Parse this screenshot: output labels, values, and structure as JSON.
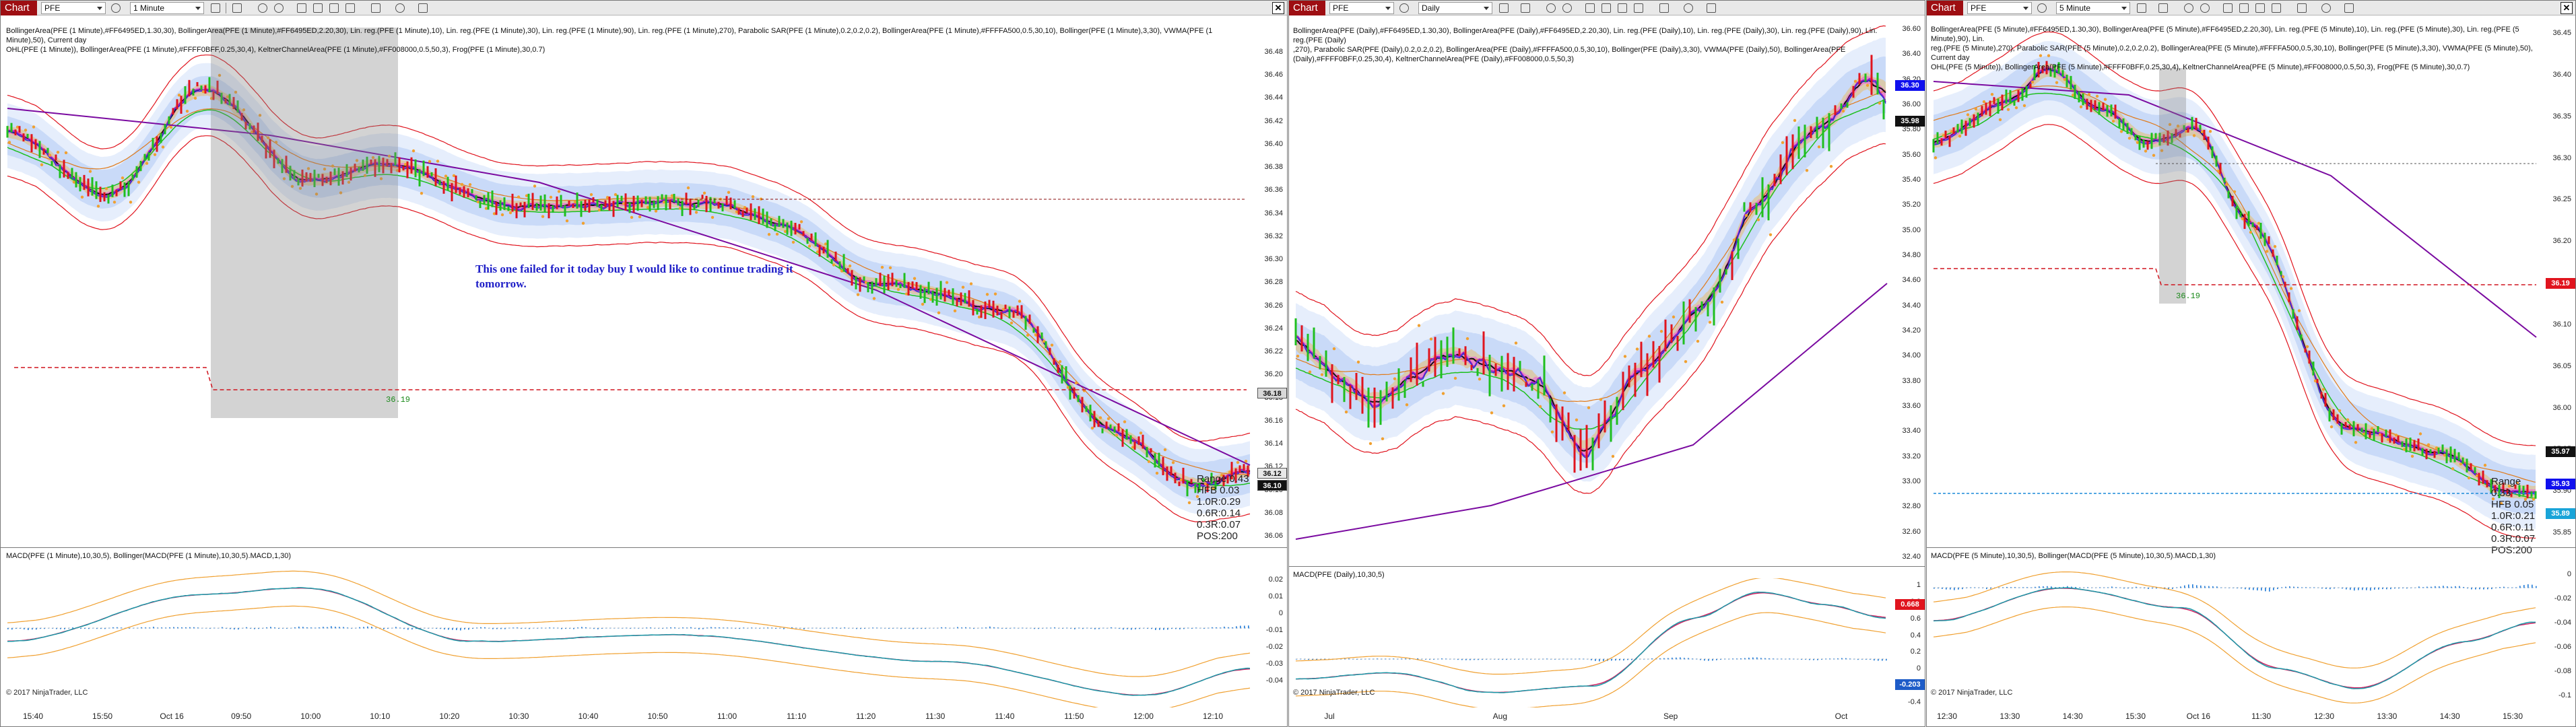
{
  "windows": [
    {
      "chart_label": "Chart",
      "instrument": "PFE",
      "period": "1 Minute",
      "indicators_line1": "BollingerArea(PFE (1 Minute),#FF6495ED,1.30,30), BollingerArea(PFE (1 Minute),#FF6495ED,2.20,30), Lin. reg.(PFE (1 Minute),10), Lin. reg.(PFE (1 Minute),30), Lin. reg.(PFE (1 Minute),90), Lin. reg.(PFE (1 Minute),270), Parabolic SAR(PFE (1 Minute),0.2,0.2,0.2), BollingerArea(PFE (1 Minute),#FFFFA500,0.5,30,10), Bollinger(PFE (1 Minute),3,30), VWMA(PFE (1 Minute),50), Current day",
      "indicators_line2": "OHL(PFE (1 Minute)), BollingerArea(PFE (1 Minute),#FFFF0BFF,0.25,30,4), KeltnerChannelArea(PFE (1 Minute),#FF008000,0.5,50,3), Frog(PFE (1 Minute),30,0.7)",
      "price_axis": [
        "36.48",
        "36.46",
        "36.44",
        "36.42",
        "36.40",
        "36.38",
        "36.36",
        "36.34",
        "36.32",
        "36.30",
        "36.28",
        "36.26",
        "36.24",
        "36.22",
        "36.20",
        "36.18",
        "36.16",
        "36.14",
        "36.12",
        "36.10",
        "36.08",
        "36.06"
      ],
      "price_tags": [
        "36.18",
        "36.12",
        "36.10"
      ],
      "annotation_line1": "This one failed for it today buy I would like to continue trading it",
      "annotation_line2": "tomorrow.",
      "level_label": "36.19",
      "stats": [
        "Range 0.43",
        "HFB 0.03",
        "1.0R:0.29",
        "0.6R:0.14",
        "0.3R:0.07",
        "POS:200"
      ],
      "lower_title": "MACD(PFE (1 Minute),10,30,5), Bollinger(MACD(PFE (1 Minute),10,30,5).MACD,1,30)",
      "lower_axis": [
        "0.02",
        "0.01",
        "0",
        "-0.01",
        "-0.02",
        "-0.03",
        "-0.04"
      ],
      "time_axis": [
        "15:40",
        "15:50",
        "Oct 16",
        "09:50",
        "10:00",
        "10:10",
        "10:20",
        "10:30",
        "10:40",
        "10:50",
        "11:00",
        "11:10",
        "11:20",
        "11:30",
        "11:40",
        "11:50",
        "12:00",
        "12:10"
      ],
      "copyright": "© 2017 NinjaTrader, LLC"
    },
    {
      "chart_label": "Chart",
      "instrument": "PFE",
      "period": "Daily",
      "indicators_line1": "BollingerArea(PFE (Daily),#FF6495ED,1.30,30), BollingerArea(PFE (Daily),#FF6495ED,2.20,30), Lin. reg.(PFE (Daily),10), Lin. reg.(PFE (Daily),30), Lin. reg.(PFE (Daily),90), Lin. reg.(PFE (Daily)",
      "indicators_line2": ",270), Parabolic SAR(PFE (Daily),0.2,0.2,0.2), BollingerArea(PFE (Daily),#FFFFA500,0.5,30,10), Bollinger(PFE (Daily),3,30), VWMA(PFE (Daily),50), BollingerArea(PFE",
      "indicators_line3": "(Daily),#FFFF0BFF,0.25,30,4), KeltnerChannelArea(PFE (Daily),#FF008000,0.5,50,3)",
      "price_axis": [
        "36.60",
        "36.40",
        "36.20",
        "36.00",
        "35.80",
        "35.60",
        "35.40",
        "35.20",
        "35.00",
        "34.80",
        "34.60",
        "34.40",
        "34.20",
        "34.00",
        "33.80",
        "33.60",
        "33.40",
        "33.20",
        "33.00",
        "32.80",
        "32.60",
        "32.40"
      ],
      "price_tags": [
        "36.30",
        "35.98"
      ],
      "lower_title": "MACD(PFE (Daily),10,30,5)",
      "lower_axis": [
        "1",
        "0.8",
        "0.6",
        "0.4",
        "0.2",
        "0",
        "-0.2",
        "-0.4"
      ],
      "lower_tags": [
        "0.668",
        "-0.203"
      ],
      "time_axis": [
        "Jul",
        "Aug",
        "Sep",
        "Oct"
      ],
      "copyright": "© 2017 NinjaTrader, LLC"
    },
    {
      "chart_label": "Chart",
      "instrument": "PFE",
      "period": "5 Minute",
      "indicators_line1": "BollingerArea(PFE (5 Minute),#FF6495ED,1.30,30), BollingerArea(PFE (5 Minute),#FF6495ED,2.20,30), Lin. reg.(PFE (5 Minute),10), Lin. reg.(PFE (5 Minute),30), Lin. reg.(PFE (5 Minute),90), Lin.",
      "indicators_line2": "reg.(PFE (5 Minute),270), Parabolic SAR(PFE (5 Minute),0.2,0.2,0.2), BollingerArea(PFE (5 Minute),#FFFFA500,0.5,30,10), Bollinger(PFE (5 Minute),3,30), VWMA(PFE (5 Minute),50), Current day",
      "indicators_line3": "OHL(PFE (5 Minute)), BollingerArea(PFE (5 Minute),#FFFF0BFF,0.25,30,4), KeltnerChannelArea(PFE (5 Minute),#FF008000,0.5,50,3), Frog(PFE (5 Minute),30,0.7)",
      "price_axis": [
        "36.45",
        "36.40",
        "36.35",
        "36.30",
        "36.25",
        "36.20",
        "36.15",
        "36.10",
        "36.05",
        "36.00",
        "35.95",
        "35.90",
        "35.85"
      ],
      "price_tags": [
        "36.19",
        "35.97",
        "35.93",
        "35.89"
      ],
      "level_label": "36.19",
      "stats": [
        "Range 0.33",
        "HFB 0.05",
        "1.0R:0.21",
        "0.6R:0.11",
        "0.3R:0.07",
        "POS:200"
      ],
      "lower_title": "MACD(PFE (5 Minute),10,30,5), Bollinger(MACD(PFE (5 Minute),10,30,5).MACD,1,30)",
      "lower_axis": [
        "0",
        "-0.02",
        "-0.04",
        "-0.06",
        "-0.08",
        "-0.1"
      ],
      "time_axis": [
        "12:30",
        "13:30",
        "14:30",
        "15:30",
        "Oct 16",
        "11:30",
        "12:30",
        "13:30",
        "14:30",
        "15:30"
      ],
      "copyright": "© 2017 NinjaTrader, LLC"
    }
  ],
  "colors": {
    "chart_button": "#9e0e12",
    "band": "#6495ED",
    "orange": "#FFA500",
    "magenta": "#FF0BFF",
    "green": "#008000",
    "up": "#1fbf1f",
    "down": "#e0141e"
  }
}
